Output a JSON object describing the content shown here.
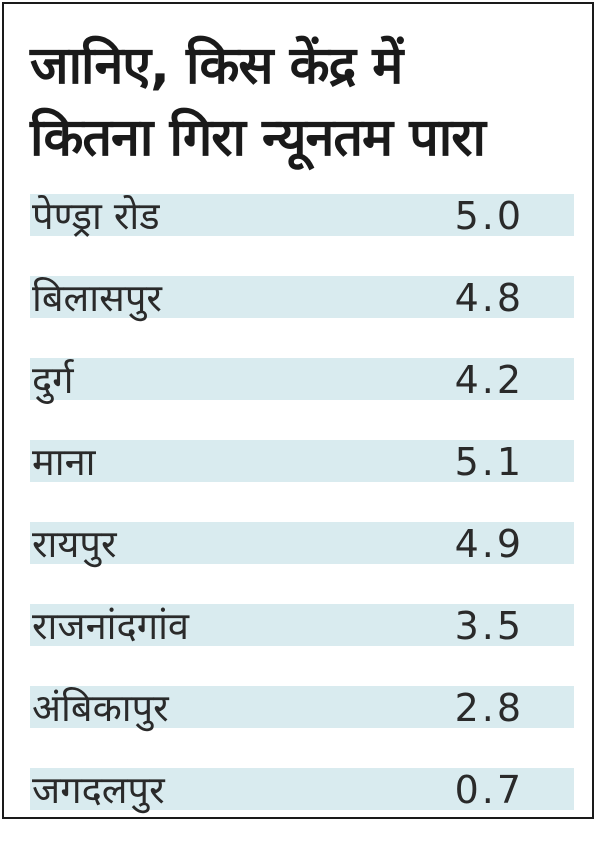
{
  "chart_data": {
    "type": "table",
    "title": "जानिए, किस केंद्र में\nकितना गिरा न्यूनतम पारा",
    "rows": [
      {
        "city": "पेण्ड्रा रोड",
        "value": "5.0"
      },
      {
        "city": "बिलासपुर",
        "value": "4.8"
      },
      {
        "city": "दुर्ग",
        "value": "4.2"
      },
      {
        "city": "माना",
        "value": "5.1"
      },
      {
        "city": "रायपुर",
        "value": "4.9"
      },
      {
        "city": "राजनांदगांव",
        "value": "3.5"
      },
      {
        "city": "अंबिकापुर",
        "value": "2.8"
      },
      {
        "city": "जगदलपुर",
        "value": "0.7"
      }
    ],
    "band_color": "#d9ebef",
    "text_color": "#2a2a2a",
    "border_color": "#1a1a1a"
  }
}
